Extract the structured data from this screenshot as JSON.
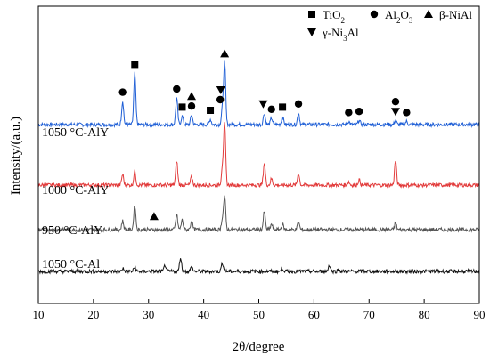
{
  "chart_data": {
    "type": "line",
    "xlabel": "2θ/degree",
    "ylabel": "Intensity/(a.u.)",
    "xlim": [
      10,
      90
    ],
    "x_ticks": [
      "10",
      "20",
      "30",
      "40",
      "50",
      "60",
      "70",
      "80",
      "90"
    ],
    "y_ticks_shown": false,
    "legend": {
      "placement": "top-right",
      "entries": [
        {
          "marker": "square",
          "label_main": "TiO",
          "label_sub": "2",
          "label_tail": ""
        },
        {
          "marker": "circle",
          "label_main": "Al",
          "label_sub": "2",
          "label_tail": "O",
          "label_sub2": "3"
        },
        {
          "marker": "triangle-up",
          "label_main": "β-NiAl"
        },
        {
          "marker": "triangle-down",
          "label_main": "γ-Ni",
          "label_sub": "3",
          "label_tail": "Al"
        }
      ]
    },
    "series": [
      {
        "name": "1050 °C-AlY",
        "color": "#1f5fd6",
        "baseline": 1.0,
        "peaks": [
          [
            25.3,
            2.2
          ],
          [
            27.5,
            4.8
          ],
          [
            35.1,
            2.5
          ],
          [
            36.1,
            0.8
          ],
          [
            37.8,
            0.9
          ],
          [
            41.2,
            0.5
          ],
          [
            43.4,
            1.5
          ],
          [
            43.8,
            5.8
          ],
          [
            51.0,
            1.1
          ],
          [
            52.3,
            0.6
          ],
          [
            54.3,
            0.8
          ],
          [
            57.2,
            1.1
          ],
          [
            66.3,
            0.3
          ],
          [
            68.2,
            0.4
          ],
          [
            74.8,
            0.4
          ],
          [
            76.8,
            0.3
          ]
        ],
        "markers": [
          {
            "x": 25.3,
            "shape": "circle"
          },
          {
            "x": 27.5,
            "shape": "square"
          },
          {
            "x": 35.1,
            "shape": "circle"
          },
          {
            "x": 36.1,
            "shape": "square"
          },
          {
            "x": 37.8,
            "shape": "circle"
          },
          {
            "x": 37.8,
            "shape": "triangle-up"
          },
          {
            "x": 41.2,
            "shape": "square"
          },
          {
            "x": 43.0,
            "shape": "circle"
          },
          {
            "x": 43.1,
            "shape": "triangle-down"
          },
          {
            "x": 43.8,
            "shape": "triangle-up"
          },
          {
            "x": 50.8,
            "shape": "triangle-down"
          },
          {
            "x": 52.3,
            "shape": "circle"
          },
          {
            "x": 54.3,
            "shape": "square"
          },
          {
            "x": 57.2,
            "shape": "circle"
          },
          {
            "x": 66.3,
            "shape": "circle"
          },
          {
            "x": 68.2,
            "shape": "circle"
          },
          {
            "x": 74.8,
            "shape": "triangle-down"
          },
          {
            "x": 74.8,
            "shape": "circle"
          },
          {
            "x": 76.8,
            "shape": "circle"
          }
        ]
      },
      {
        "name": "1000 °C-AlY",
        "color": "#e23a3a",
        "baseline": 1.0,
        "peaks": [
          [
            25.3,
            1.0
          ],
          [
            27.5,
            1.3
          ],
          [
            35.1,
            2.3
          ],
          [
            37.8,
            0.8
          ],
          [
            43.4,
            1.7
          ],
          [
            43.8,
            5.6
          ],
          [
            51.0,
            2.1
          ],
          [
            52.3,
            0.6
          ],
          [
            57.2,
            1.1
          ],
          [
            66.3,
            0.3
          ],
          [
            68.2,
            0.5
          ],
          [
            74.8,
            2.3
          ]
        ]
      },
      {
        "name": "950 °C-AlY",
        "color": "#555555",
        "baseline": 1.0,
        "peaks": [
          [
            25.3,
            0.8
          ],
          [
            27.5,
            2.3
          ],
          [
            35.1,
            1.4
          ],
          [
            36.1,
            0.9
          ],
          [
            37.8,
            0.8
          ],
          [
            43.4,
            1.0
          ],
          [
            43.8,
            3.0
          ],
          [
            51.0,
            1.7
          ],
          [
            52.3,
            0.5
          ],
          [
            54.3,
            0.5
          ],
          [
            57.2,
            0.7
          ],
          [
            74.8,
            0.6
          ]
        ],
        "markers": [
          {
            "x": 31.0,
            "shape": "triangle-up"
          }
        ]
      },
      {
        "name": "1050 °C-Al",
        "color": "#111111",
        "baseline": 1.0,
        "peaks": [
          [
            25.3,
            0.3
          ],
          [
            27.5,
            0.4
          ],
          [
            33.0,
            0.6
          ],
          [
            35.8,
            1.3
          ],
          [
            37.8,
            0.4
          ],
          [
            43.4,
            0.8
          ],
          [
            54.3,
            0.3
          ],
          [
            62.8,
            0.6
          ],
          [
            64.5,
            0.2
          ]
        ]
      }
    ]
  }
}
